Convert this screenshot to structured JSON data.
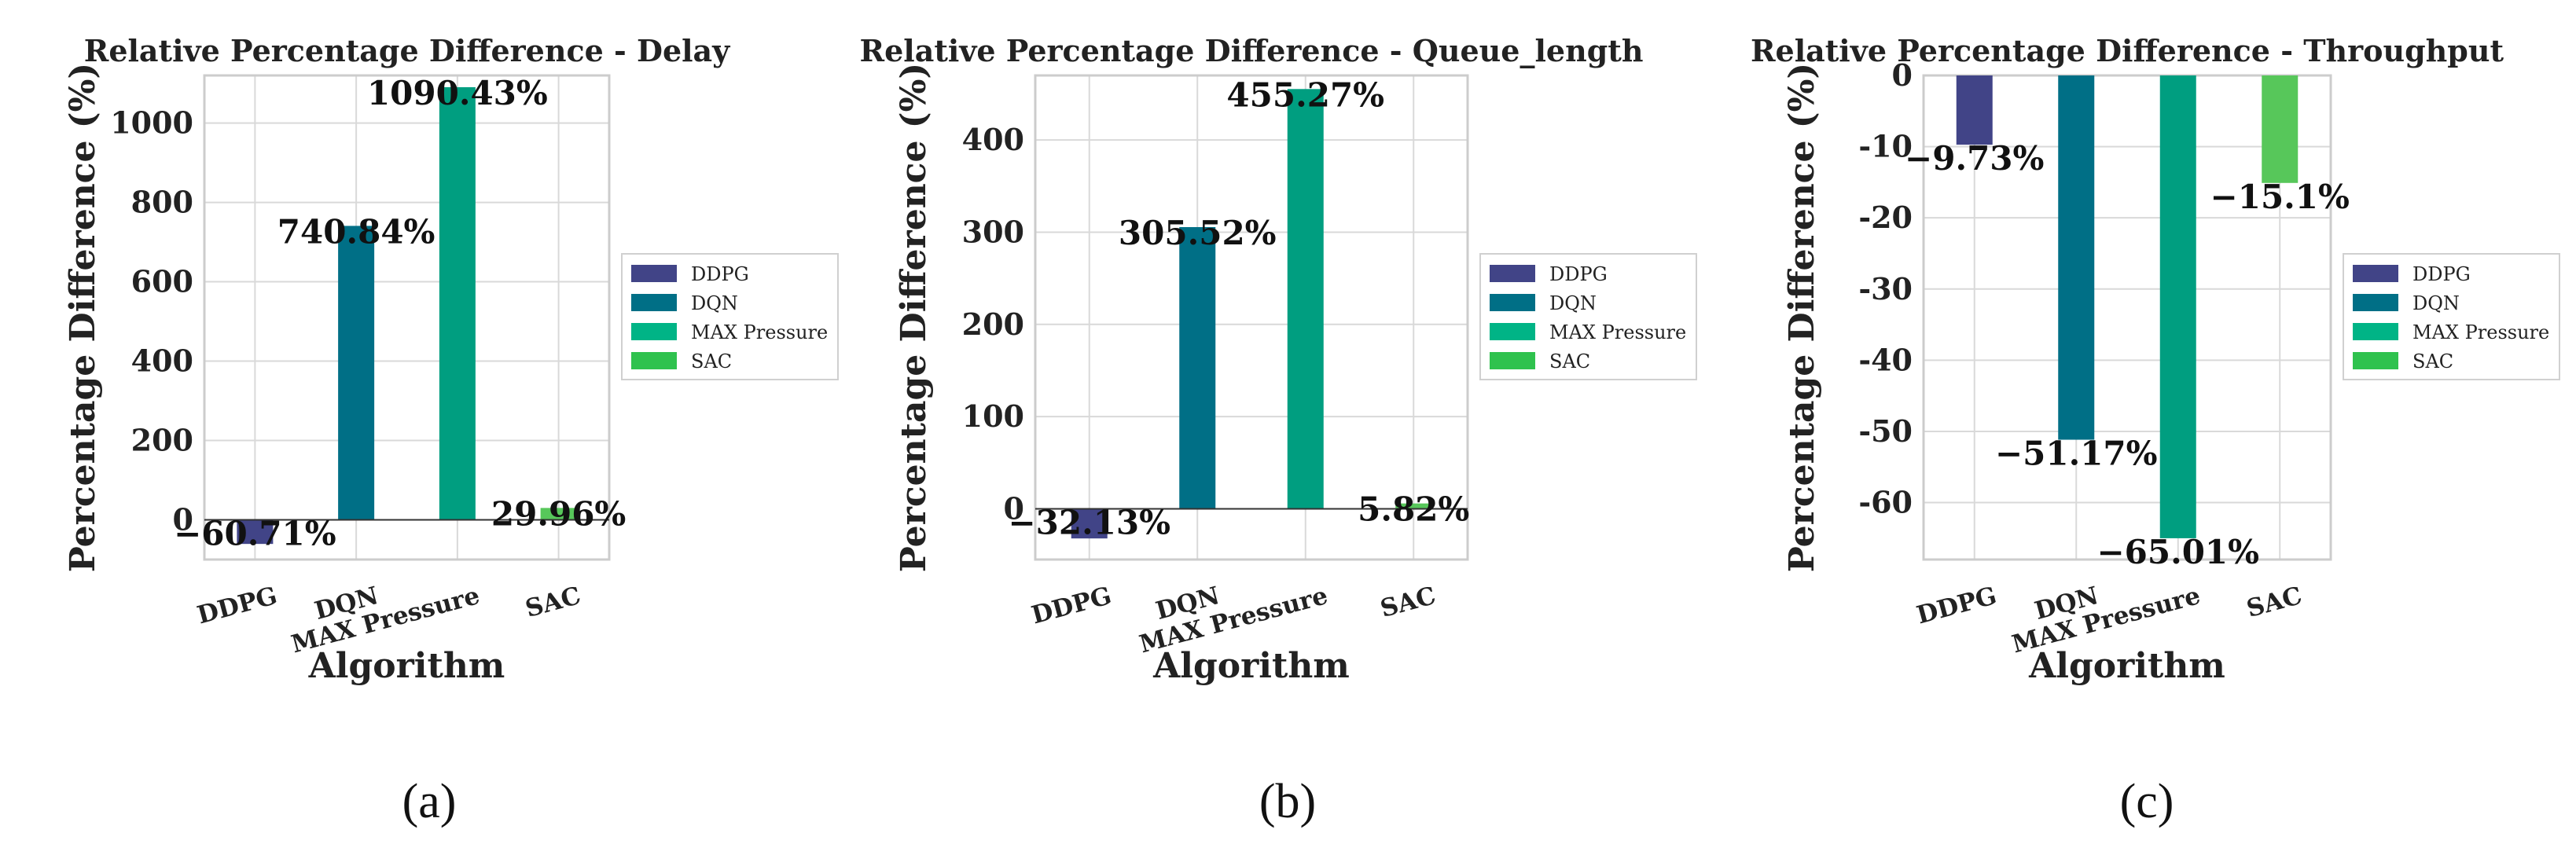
{
  "chart_data": [
    {
      "type": "bar",
      "title": "Relative Percentage Difference - Delay",
      "xlabel": "Algorithm",
      "ylabel": "Percentage Difference (%)",
      "categories": [
        "DDPG",
        "DQN",
        "MAX Pressure",
        "SAC"
      ],
      "values": [
        -60.71,
        740.84,
        1090.43,
        29.96
      ],
      "data_labels": [
        "−60.71%",
        "740.84%",
        "1090.43%",
        "29.96%"
      ],
      "ylim": [
        -100,
        1120
      ],
      "yticks": [
        0,
        200,
        400,
        600,
        800,
        1000
      ],
      "legend": [
        "DDPG",
        "DQN",
        "MAX Pressure",
        "SAC"
      ],
      "legend_position": "center-right",
      "grid": true,
      "sublabel": "(a)"
    },
    {
      "type": "bar",
      "title": "Relative Percentage Difference - Queue_length",
      "xlabel": "Algorithm",
      "ylabel": "Percentage Difference (%)",
      "categories": [
        "DDPG",
        "DQN",
        "MAX Pressure",
        "SAC"
      ],
      "values": [
        -32.13,
        305.52,
        455.27,
        5.82
      ],
      "data_labels": [
        "−32.13%",
        "305.52%",
        "455.27%",
        "5.82%"
      ],
      "ylim": [
        -55,
        470
      ],
      "yticks": [
        0,
        100,
        200,
        300,
        400
      ],
      "legend": [
        "DDPG",
        "DQN",
        "MAX Pressure",
        "SAC"
      ],
      "legend_position": "center-right",
      "grid": true,
      "sublabel": "(b)"
    },
    {
      "type": "bar",
      "title": "Relative Percentage Difference - Throughput",
      "xlabel": "Algorithm",
      "ylabel": "Percentage Difference (%)",
      "categories": [
        "DDPG",
        "DQN",
        "MAX Pressure",
        "SAC"
      ],
      "values": [
        -9.73,
        -51.17,
        -65.01,
        -15.1
      ],
      "data_labels": [
        "−9.73%",
        "−51.17%",
        "−65.01%",
        "−15.1%"
      ],
      "ylim": [
        -68,
        0
      ],
      "yticks": [
        0,
        -10,
        -20,
        -30,
        -40,
        -50,
        -60
      ],
      "legend": [
        "DDPG",
        "DQN",
        "MAX Pressure",
        "SAC"
      ],
      "legend_position": "center-right",
      "grid": true,
      "sublabel": "(c)"
    }
  ],
  "colors": {
    "DDPG": "#414487",
    "DQN": "#006f86",
    "MAX Pressure": "#009e80",
    "SAC": "#57c75a",
    "SAC_legend": "#2fc24e",
    "MAX Pressure_legend": "#00b486",
    "grid": "#d9d9d9",
    "spine": "#cccccc"
  }
}
